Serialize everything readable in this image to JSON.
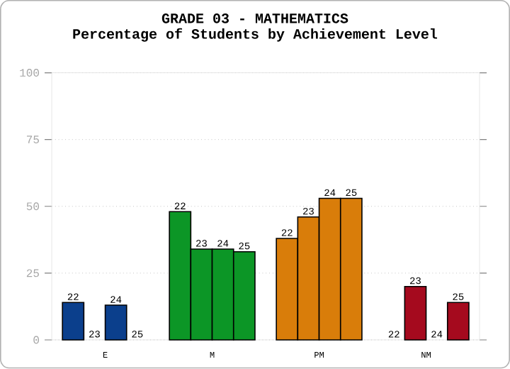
{
  "chart_data": {
    "type": "bar",
    "title": "GRADE 03 - MATHEMATICS",
    "subtitle": "Percentage of Students by Achievement Level",
    "categories": [
      "E",
      "M",
      "PM",
      "NM"
    ],
    "series": [
      {
        "name": "22",
        "colors": [
          "#0b3f8c",
          "#0c9626",
          "#d97d0a",
          "#a50a1e"
        ],
        "values": [
          14,
          48,
          38,
          0
        ]
      },
      {
        "name": "23",
        "colors": [
          "#0b3f8c",
          "#0c9626",
          "#d97d0a",
          "#a50a1e"
        ],
        "values": [
          0,
          34,
          46,
          20
        ]
      },
      {
        "name": "24",
        "colors": [
          "#0b3f8c",
          "#0c9626",
          "#d97d0a",
          "#a50a1e"
        ],
        "values": [
          13,
          34,
          53,
          0
        ]
      },
      {
        "name": "25",
        "colors": [
          "#0b3f8c",
          "#0c9626",
          "#d97d0a",
          "#a50a1e"
        ],
        "values": [
          0,
          33,
          53,
          14
        ]
      }
    ],
    "ylim": [
      0,
      100
    ],
    "yticks": [
      0,
      25,
      50,
      75,
      100
    ],
    "grid": "y"
  }
}
